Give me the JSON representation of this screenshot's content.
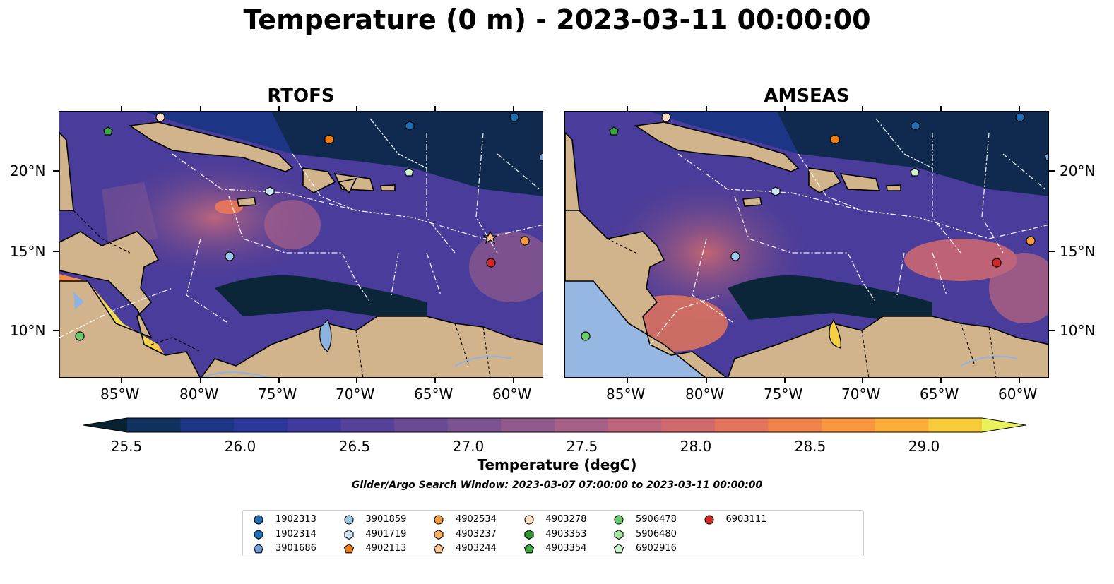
{
  "title": "Temperature (0 m) - 2023-03-11 00:00:00",
  "panels": [
    {
      "title": "RTOFS"
    },
    {
      "title": "AMSEAS"
    }
  ],
  "lat_labels": [
    "20°N",
    "15°N",
    "10°N"
  ],
  "lon_labels": [
    "85°W",
    "80°W",
    "75°W",
    "70°W",
    "65°W",
    "60°W"
  ],
  "colorbar": {
    "label": "Temperature (degC)",
    "ticks": [
      "25.5",
      "26.0",
      "26.5",
      "27.0",
      "27.5",
      "28.0",
      "28.5",
      "29.0"
    ],
    "colors": [
      "#072332",
      "#10315e",
      "#1c3585",
      "#2c379a",
      "#3f3a9e",
      "#56419a",
      "#6a4a95",
      "#7c5391",
      "#915a8c",
      "#a76087",
      "#bd657d",
      "#d16a6e",
      "#e3755c",
      "#f0844d",
      "#f9973f",
      "#fcae38",
      "#f7cb3a",
      "#eaf25a"
    ]
  },
  "search_window": "Glider/Argo Search Window: 2023-03-07 07:00:00 to 2023-03-11 00:00:00",
  "legend": [
    {
      "id": "1902313",
      "color": "#1f6fb4",
      "shape": "circle"
    },
    {
      "id": "1902314",
      "color": "#1f6fb4",
      "shape": "hexagon"
    },
    {
      "id": "3901686",
      "color": "#6e9fd6",
      "shape": "pentagon"
    },
    {
      "id": "3901859",
      "color": "#9ccbea",
      "shape": "circle"
    },
    {
      "id": "4901719",
      "color": "#cfe6f5",
      "shape": "hexagon"
    },
    {
      "id": "4902113",
      "color": "#f07d12",
      "shape": "pentagon"
    },
    {
      "id": "4902534",
      "color": "#f59a3f",
      "shape": "circle"
    },
    {
      "id": "4903237",
      "color": "#fbb061",
      "shape": "hexagon"
    },
    {
      "id": "4903244",
      "color": "#fcc690",
      "shape": "pentagon"
    },
    {
      "id": "4903278",
      "color": "#fde0c4",
      "shape": "circle"
    },
    {
      "id": "4903353",
      "color": "#2f9a2f",
      "shape": "hexagon"
    },
    {
      "id": "4903354",
      "color": "#3aa83a",
      "shape": "pentagon"
    },
    {
      "id": "5906478",
      "color": "#6ccc6c",
      "shape": "circle"
    },
    {
      "id": "5906480",
      "color": "#a3e8a3",
      "shape": "hexagon"
    },
    {
      "id": "6902916",
      "color": "#cdf5cd",
      "shape": "pentagon"
    },
    {
      "id": "6903111",
      "color": "#d62728",
      "shape": "circle"
    }
  ]
}
